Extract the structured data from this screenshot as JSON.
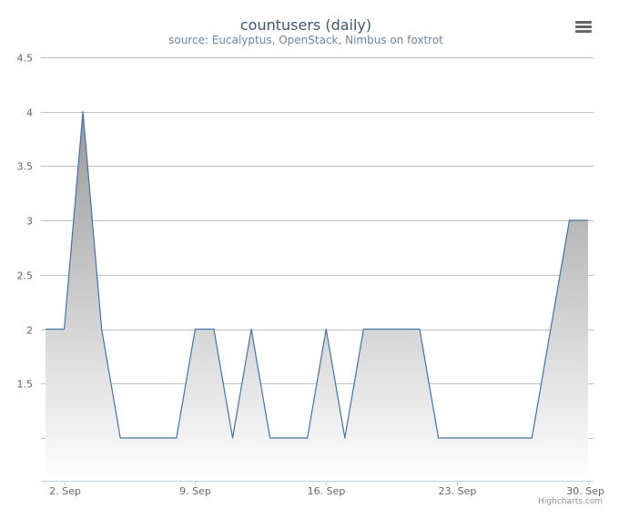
{
  "title": "countusers (daily)",
  "subtitle": "source: Eucalyptus, OpenStack, Nimbus on foxtrot",
  "credits": "Highcharts.com",
  "menu_icon": "hamburger-menu-icon",
  "colors": {
    "line": "#4572A7",
    "area_top": "#999999",
    "area_bottom": "#ffffff",
    "grid": "#C0C0C0",
    "axis": "#C0D0E0",
    "title": "#3E576F",
    "subtitle": "#6D869F",
    "tick_label": "#666666",
    "credits": "#909090",
    "menu_icon": "#666666"
  },
  "chart_data": {
    "type": "area",
    "title": "countusers (daily)",
    "subtitle": "source: Eucalyptus, OpenStack, Nimbus on foxtrot",
    "xlabel": "",
    "ylabel": "",
    "x_type": "datetime",
    "x": [
      "2012-09-01",
      "2012-09-02",
      "2012-09-03",
      "2012-09-04",
      "2012-09-05",
      "2012-09-06",
      "2012-09-07",
      "2012-09-08",
      "2012-09-09",
      "2012-09-10",
      "2012-09-11",
      "2012-09-12",
      "2012-09-13",
      "2012-09-14",
      "2012-09-15",
      "2012-09-16",
      "2012-09-17",
      "2012-09-18",
      "2012-09-19",
      "2012-09-20",
      "2012-09-21",
      "2012-09-22",
      "2012-09-23",
      "2012-09-24",
      "2012-09-25",
      "2012-09-26",
      "2012-09-27",
      "2012-09-28",
      "2012-09-29",
      "2012-09-30"
    ],
    "series": [
      {
        "values": [
          2,
          2,
          4,
          2,
          1,
          1,
          1,
          1,
          2,
          2,
          1,
          2,
          1,
          1,
          1,
          2,
          1,
          2,
          2,
          2,
          2,
          1,
          1,
          1,
          1,
          1,
          1,
          2,
          3,
          3
        ]
      }
    ],
    "x_ticks": [
      {
        "x": "2012-09-02",
        "label": "2. Sep"
      },
      {
        "x": "2012-09-09",
        "label": "9. Sep"
      },
      {
        "x": "2012-09-16",
        "label": "16. Sep"
      },
      {
        "x": "2012-09-23",
        "label": "23. Sep"
      },
      {
        "x": "2012-09-30",
        "label": "30. Sep"
      }
    ],
    "y_ticks": [
      {
        "value": 1,
        "label": ""
      },
      {
        "value": 1.5,
        "label": "1.5"
      },
      {
        "value": 2,
        "label": "2"
      },
      {
        "value": 2.5,
        "label": "2.5"
      },
      {
        "value": 3,
        "label": "3"
      },
      {
        "value": 3.5,
        "label": "3.5"
      },
      {
        "value": 4,
        "label": "4"
      },
      {
        "value": 4.5,
        "label": "4.5"
      }
    ],
    "ylim": [
      0.6,
      4.5
    ],
    "grid": true,
    "legend": false
  }
}
